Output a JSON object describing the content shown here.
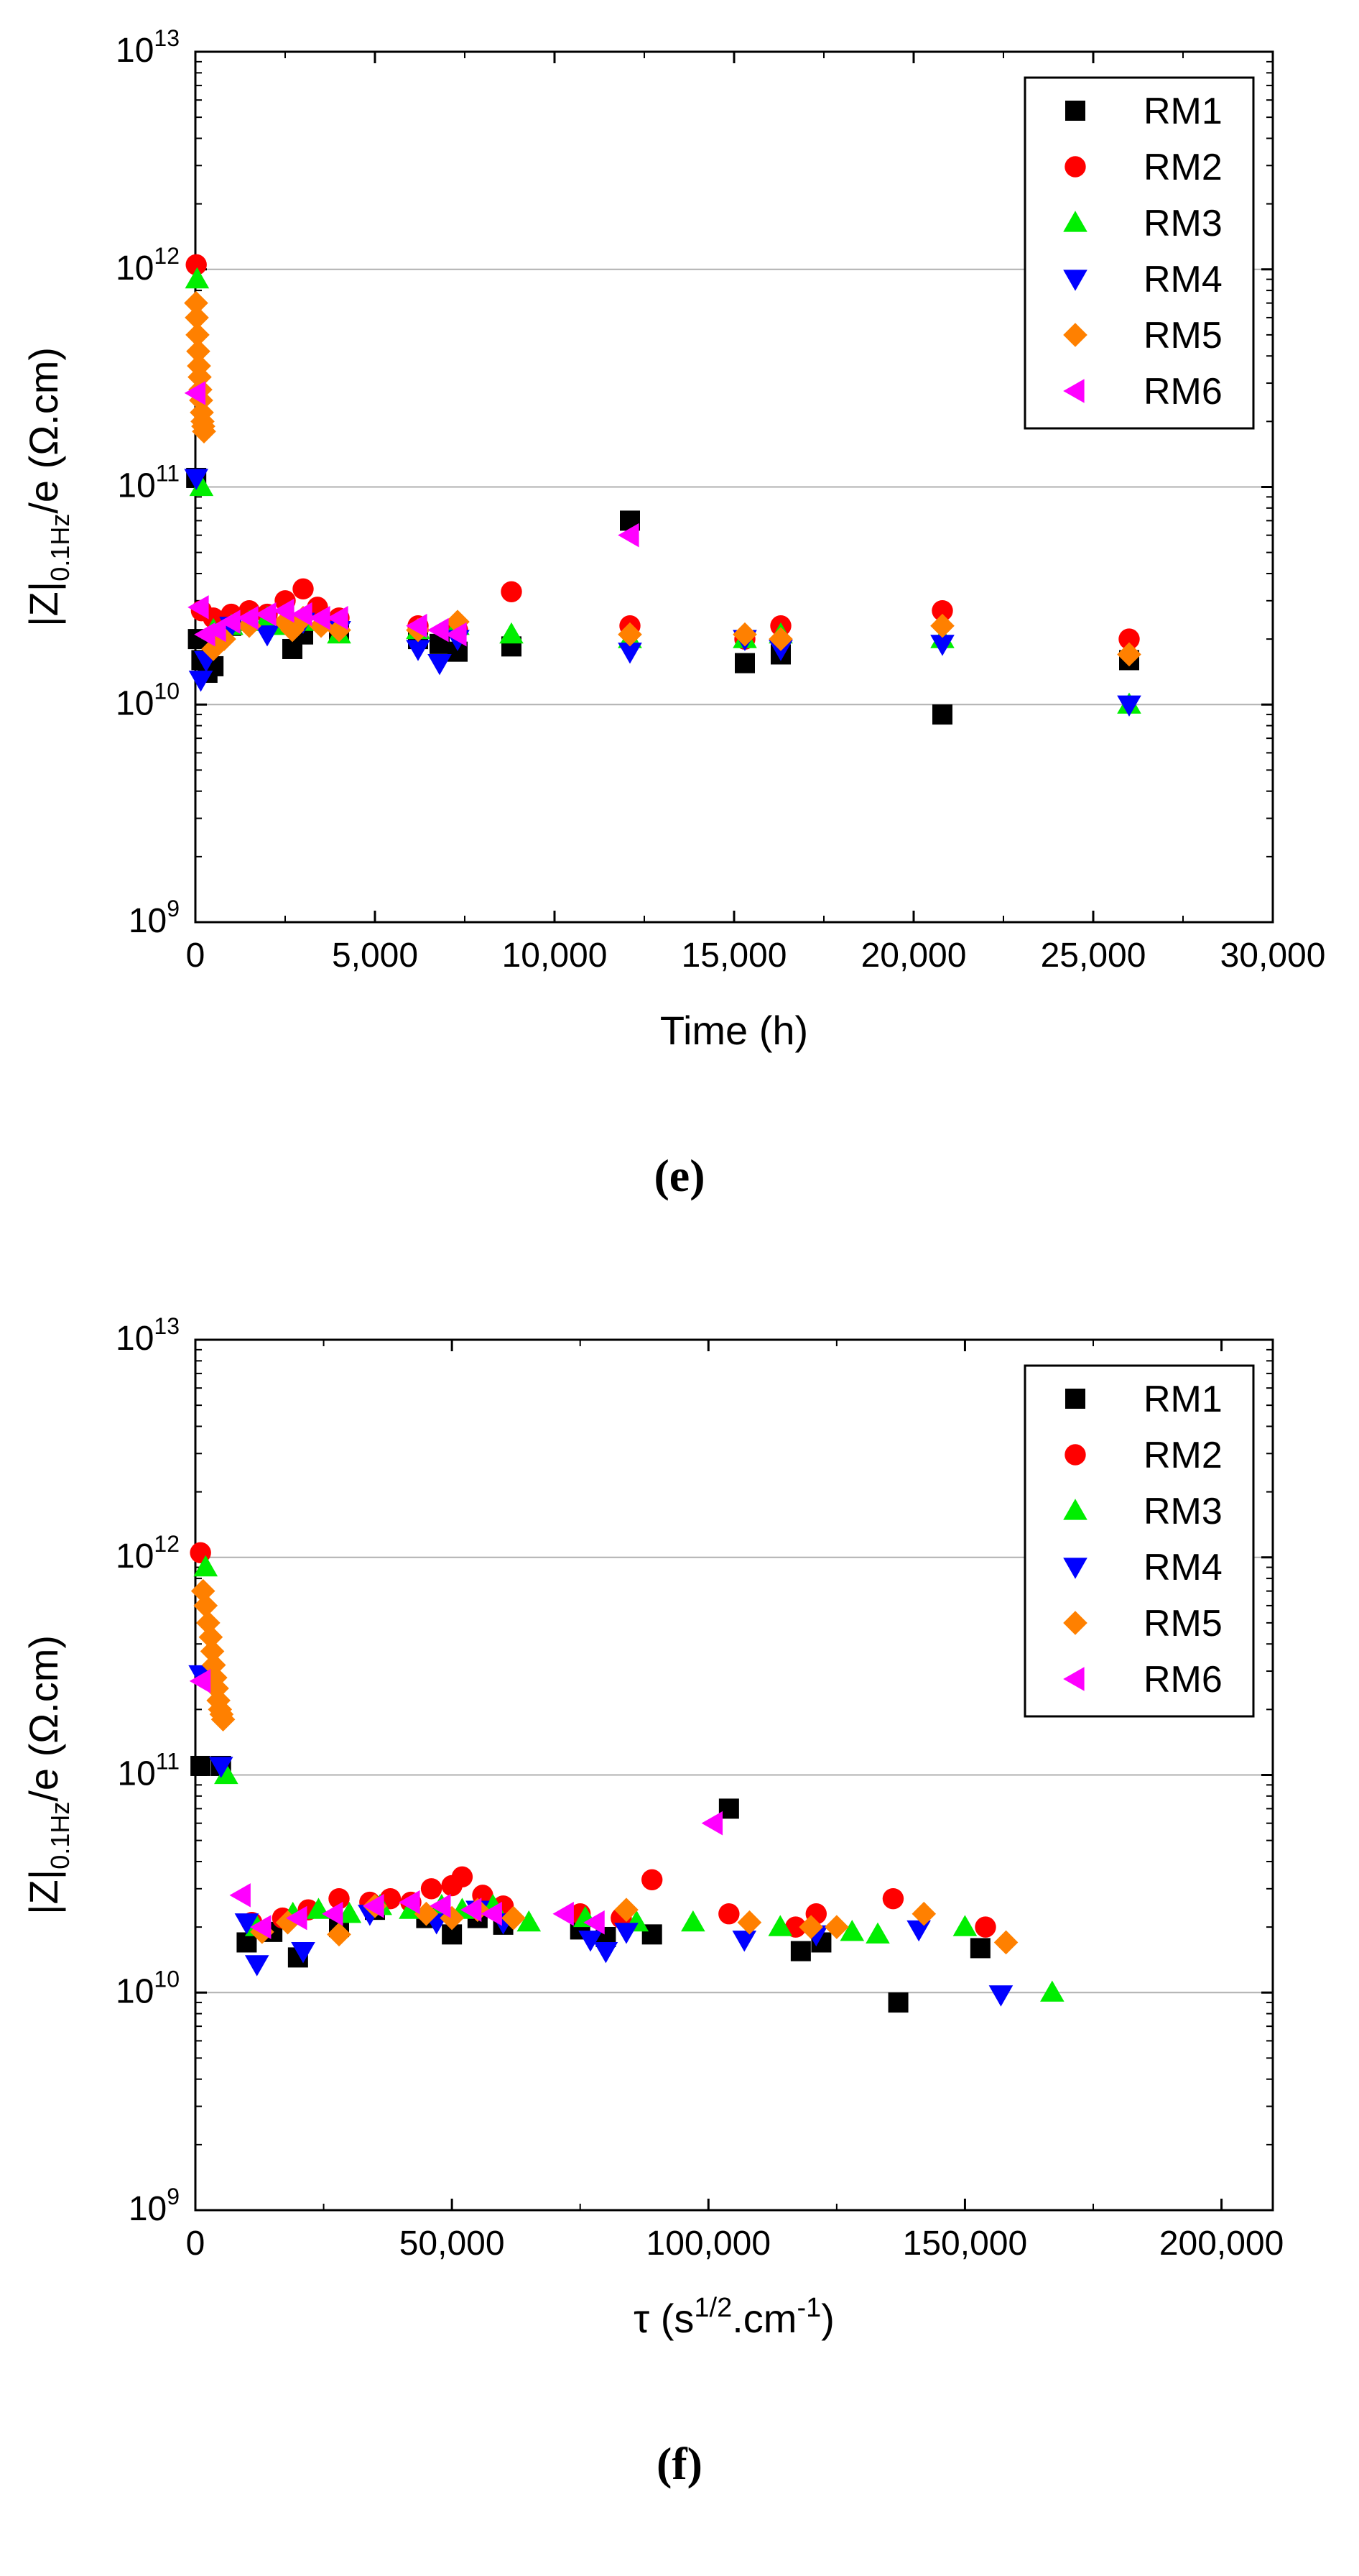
{
  "chart_data": [
    {
      "type": "scatter",
      "panel": "(e)",
      "xlabel": "Time   (h)",
      "ylabel": {
        "base": "|Z|",
        "sub": "0.1Hz",
        "tail": "/e   (Ω.cm)"
      },
      "xscale": "linear",
      "yscale": "log",
      "xlim": [
        0,
        30000
      ],
      "ylim": [
        1000000000.0,
        10000000000000.0
      ],
      "xticks": [
        0,
        5000,
        10000,
        15000,
        20000,
        25000,
        30000
      ],
      "xtick_labels": [
        "0",
        "5,000",
        "10,000",
        "15,000",
        "20,000",
        "25,000",
        "30,000"
      ],
      "ytick_exponents": [
        9,
        10,
        11,
        12,
        13
      ],
      "ytick_base": "10",
      "gridlines_y": [
        10000000000.0,
        100000000000.0,
        1000000000000.0
      ],
      "legend_position": "top-right",
      "series": [
        {
          "name": "RM1",
          "color": "#000000",
          "marker": "square",
          "x": [
            24,
            72,
            168,
            336,
            504,
            1000,
            2700,
            3000,
            4000,
            6200,
            6800,
            7300,
            8800,
            12100,
            15300,
            16300,
            20800,
            26000
          ],
          "y": [
            110000000000.0,
            20000000000.0,
            16000000000.0,
            14000000000.0,
            15000000000.0,
            23000000000.0,
            18000000000.0,
            21000000000.0,
            22000000000.0,
            20000000000.0,
            19000000000.0,
            17500000000.0,
            18500000000.0,
            70000000000.0,
            15500000000.0,
            17000000000.0,
            9000000000.0,
            16000000000.0
          ]
        },
        {
          "name": "RM2",
          "color": "#ff0000",
          "marker": "circle",
          "x": [
            24,
            168,
            500,
            1000,
            1500,
            2000,
            2500,
            3000,
            3400,
            4000,
            6200,
            7300,
            8800,
            12100,
            15300,
            16300,
            20800,
            26000
          ],
          "y": [
            1050000000000.0,
            27000000000.0,
            25000000000.0,
            26000000000.0,
            27000000000.0,
            26000000000.0,
            30000000000.0,
            34000000000.0,
            28000000000.0,
            25000000000.0,
            23000000000.0,
            22000000000.0,
            33000000000.0,
            23000000000.0,
            20000000000.0,
            23000000000.0,
            27000000000.0,
            20000000000.0
          ]
        },
        {
          "name": "RM3",
          "color": "#00ee00",
          "marker": "triangle-up",
          "x": [
            48,
            168,
            500,
            1000,
            1500,
            2000,
            2500,
            3000,
            4000,
            6200,
            7300,
            8800,
            12100,
            15300,
            16300,
            20800,
            26000
          ],
          "y": [
            900000000000.0,
            100000000000.0,
            22000000000.0,
            23000000000.0,
            24000000000.0,
            25000000000.0,
            23000000000.0,
            24000000000.0,
            21000000000.0,
            22000000000.0,
            23000000000.0,
            21000000000.0,
            20000000000.0,
            20000000000.0,
            21000000000.0,
            20000000000.0,
            10000000000.0
          ]
        },
        {
          "name": "RM4",
          "color": "#0000ff",
          "marker": "triangle-down",
          "x": [
            24,
            150,
            300,
            700,
            1000,
            2000,
            3000,
            4000,
            6200,
            6800,
            7300,
            12100,
            15300,
            16300,
            20800,
            26000
          ],
          "y": [
            110000000000.0,
            13000000000.0,
            16000000000.0,
            20000000000.0,
            23000000000.0,
            21000000000.0,
            24000000000.0,
            22000000000.0,
            18000000000.0,
            15500000000.0,
            20000000000.0,
            17500000000.0,
            20000000000.0,
            18000000000.0,
            19000000000.0,
            10000000000.0
          ]
        },
        {
          "name": "RM5",
          "color": "#ff8000",
          "marker": "diamond",
          "x": [
            20,
            40,
            60,
            80,
            100,
            120,
            140,
            160,
            180,
            200,
            220,
            240,
            500,
            800,
            1500,
            2500,
            2700,
            3000,
            3500,
            4000,
            6200,
            7300,
            12100,
            15300,
            16300,
            20800,
            26000
          ],
          "y": [
            700000000000.0,
            600000000000.0,
            500000000000.0,
            420000000000.0,
            360000000000.0,
            320000000000.0,
            280000000000.0,
            250000000000.0,
            220000000000.0,
            200000000000.0,
            190000000000.0,
            180000000000.0,
            18000000000.0,
            20000000000.0,
            23000000000.0,
            24000000000.0,
            22000000000.0,
            25000000000.0,
            23000000000.0,
            22000000000.0,
            22000000000.0,
            24000000000.0,
            21000000000.0,
            21000000000.0,
            20000000000.0,
            23000000000.0,
            17000000000.0
          ]
        },
        {
          "name": "RM6",
          "color": "#ff00ff",
          "marker": "triangle-left",
          "x": [
            30,
            120,
            300,
            600,
            1000,
            1500,
            2000,
            2500,
            3000,
            3500,
            4000,
            6200,
            6800,
            7300,
            12100
          ],
          "y": [
            270000000000.0,
            28000000000.0,
            21000000000.0,
            22000000000.0,
            24000000000.0,
            25000000000.0,
            26000000000.0,
            27000000000.0,
            26000000000.0,
            25000000000.0,
            25000000000.0,
            23000000000.0,
            22000000000.0,
            21000000000.0,
            60000000000.0
          ]
        }
      ]
    },
    {
      "type": "scatter",
      "panel": "(f)",
      "xlabel": "τ   (s",
      "xlabel_sup": "1/2",
      "xlabel_mid": ".cm",
      "xlabel_sup2": "-1",
      "xlabel_end": ")",
      "ylabel": {
        "base": "|Z|",
        "sub": "0.1Hz",
        "tail": "/e   (Ω.cm)"
      },
      "xscale": "linear",
      "yscale": "log",
      "xlim": [
        0,
        210000
      ],
      "ylim": [
        1000000000.0,
        10000000000000.0
      ],
      "xticks": [
        0,
        50000,
        100000,
        150000,
        200000
      ],
      "xtick_labels": [
        "0",
        "50,000",
        "100,000",
        "150,000",
        "200,000"
      ],
      "ytick_exponents": [
        9,
        10,
        11,
        12,
        13
      ],
      "ytick_base": "10",
      "gridlines_y": [
        10000000000.0,
        100000000000.0,
        1000000000000.0
      ],
      "legend_position": "top-right",
      "series": [
        {
          "name": "RM1",
          "color": "#000000",
          "marker": "square",
          "x": [
            1000,
            5000,
            10000,
            15000,
            20000,
            28000,
            35000,
            45000,
            50000,
            55000,
            60000,
            75000,
            80000,
            89000,
            104000,
            118000,
            122000,
            137000,
            153000
          ],
          "y": [
            110000000000.0,
            110000000000.0,
            17000000000.0,
            19000000000.0,
            14500000000.0,
            20000000000.0,
            24000000000.0,
            22000000000.0,
            18500000000.0,
            22000000000.0,
            20500000000.0,
            19500000000.0,
            18000000000.0,
            18500000000.0,
            70000000000.0,
            15500000000.0,
            17000000000.0,
            9000000000.0,
            16000000000.0
          ]
        },
        {
          "name": "RM2",
          "color": "#ff0000",
          "marker": "circle",
          "x": [
            1000,
            11000,
            17000,
            22000,
            28000,
            34000,
            38000,
            42000,
            46000,
            50000,
            52000,
            56000,
            60000,
            75000,
            83000,
            89000,
            104000,
            117000,
            121000,
            136000,
            154000
          ],
          "y": [
            1050000000000.0,
            21000000000.0,
            22000000000.0,
            24000000000.0,
            27000000000.0,
            26000000000.0,
            27000000000.0,
            26000000000.0,
            30000000000.0,
            31000000000.0,
            34000000000.0,
            28000000000.0,
            25000000000.0,
            23000000000.0,
            22000000000.0,
            33000000000.0,
            23000000000.0,
            20000000000.0,
            23000000000.0,
            27000000000.0,
            20000000000.0
          ]
        },
        {
          "name": "RM3",
          "color": "#00ee00",
          "marker": "triangle-up",
          "x": [
            2000,
            6000,
            12000,
            19000,
            24000,
            30000,
            36000,
            42000,
            48000,
            52000,
            58000,
            65000,
            76000,
            86000,
            97000,
            114000,
            128000,
            133000,
            150000,
            167000
          ],
          "y": [
            900000000000.0,
            100000000000.0,
            20000000000.0,
            23000000000.0,
            24000000000.0,
            23000000000.0,
            25000000000.0,
            24000000000.0,
            25000000000.0,
            24000000000.0,
            25000000000.0,
            21000000000.0,
            22000000000.0,
            21000000000.0,
            21000000000.0,
            20000000000.0,
            19000000000.0,
            18500000000.0,
            20000000000.0,
            10000000000.0
          ]
        },
        {
          "name": "RM4",
          "color": "#0000ff",
          "marker": "triangle-down",
          "x": [
            1000,
            5000,
            10000,
            12000,
            21000,
            34000,
            47000,
            55000,
            60000,
            77000,
            80000,
            84000,
            107000,
            121000,
            141000,
            157000
          ],
          "y": [
            290000000000.0,
            110000000000.0,
            21000000000.0,
            13500000000.0,
            15500000000.0,
            23000000000.0,
            21000000000.0,
            24000000000.0,
            21000000000.0,
            17500000000.0,
            15500000000.0,
            19000000000.0,
            17500000000.0,
            18500000000.0,
            19500000000.0,
            9800000000.0
          ]
        },
        {
          "name": "RM5",
          "color": "#ff8000",
          "marker": "diamond",
          "x": [
            1500,
            2000,
            2500,
            3000,
            3300,
            3600,
            3900,
            4200,
            4500,
            4800,
            5100,
            5400,
            13000,
            18000,
            28000,
            35000,
            45000,
            50000,
            55000,
            62000,
            84000,
            108000,
            120000,
            125000,
            142000,
            158000
          ],
          "y": [
            700000000000.0,
            600000000000.0,
            500000000000.0,
            430000000000.0,
            370000000000.0,
            320000000000.0,
            280000000000.0,
            250000000000.0,
            220000000000.0,
            200000000000.0,
            190000000000.0,
            180000000000.0,
            19000000000.0,
            21000000000.0,
            18500000000.0,
            25000000000.0,
            23000000000.0,
            22000000000.0,
            24000000000.0,
            22000000000.0,
            24000000000.0,
            21000000000.0,
            20000000000.0,
            20000000000.0,
            23000000000.0,
            17000000000.0
          ]
        },
        {
          "name": "RM6",
          "color": "#ff00ff",
          "marker": "triangle-left",
          "x": [
            1200,
            9000,
            13000,
            20000,
            27000,
            35000,
            42000,
            48000,
            54000,
            58000,
            72000,
            78000,
            101000
          ],
          "y": [
            270000000000.0,
            28000000000.0,
            20000000000.0,
            22000000000.0,
            23000000000.0,
            25000000000.0,
            26000000000.0,
            25000000000.0,
            24000000000.0,
            23000000000.0,
            23000000000.0,
            21000000000.0,
            60000000000.0
          ]
        }
      ]
    }
  ]
}
